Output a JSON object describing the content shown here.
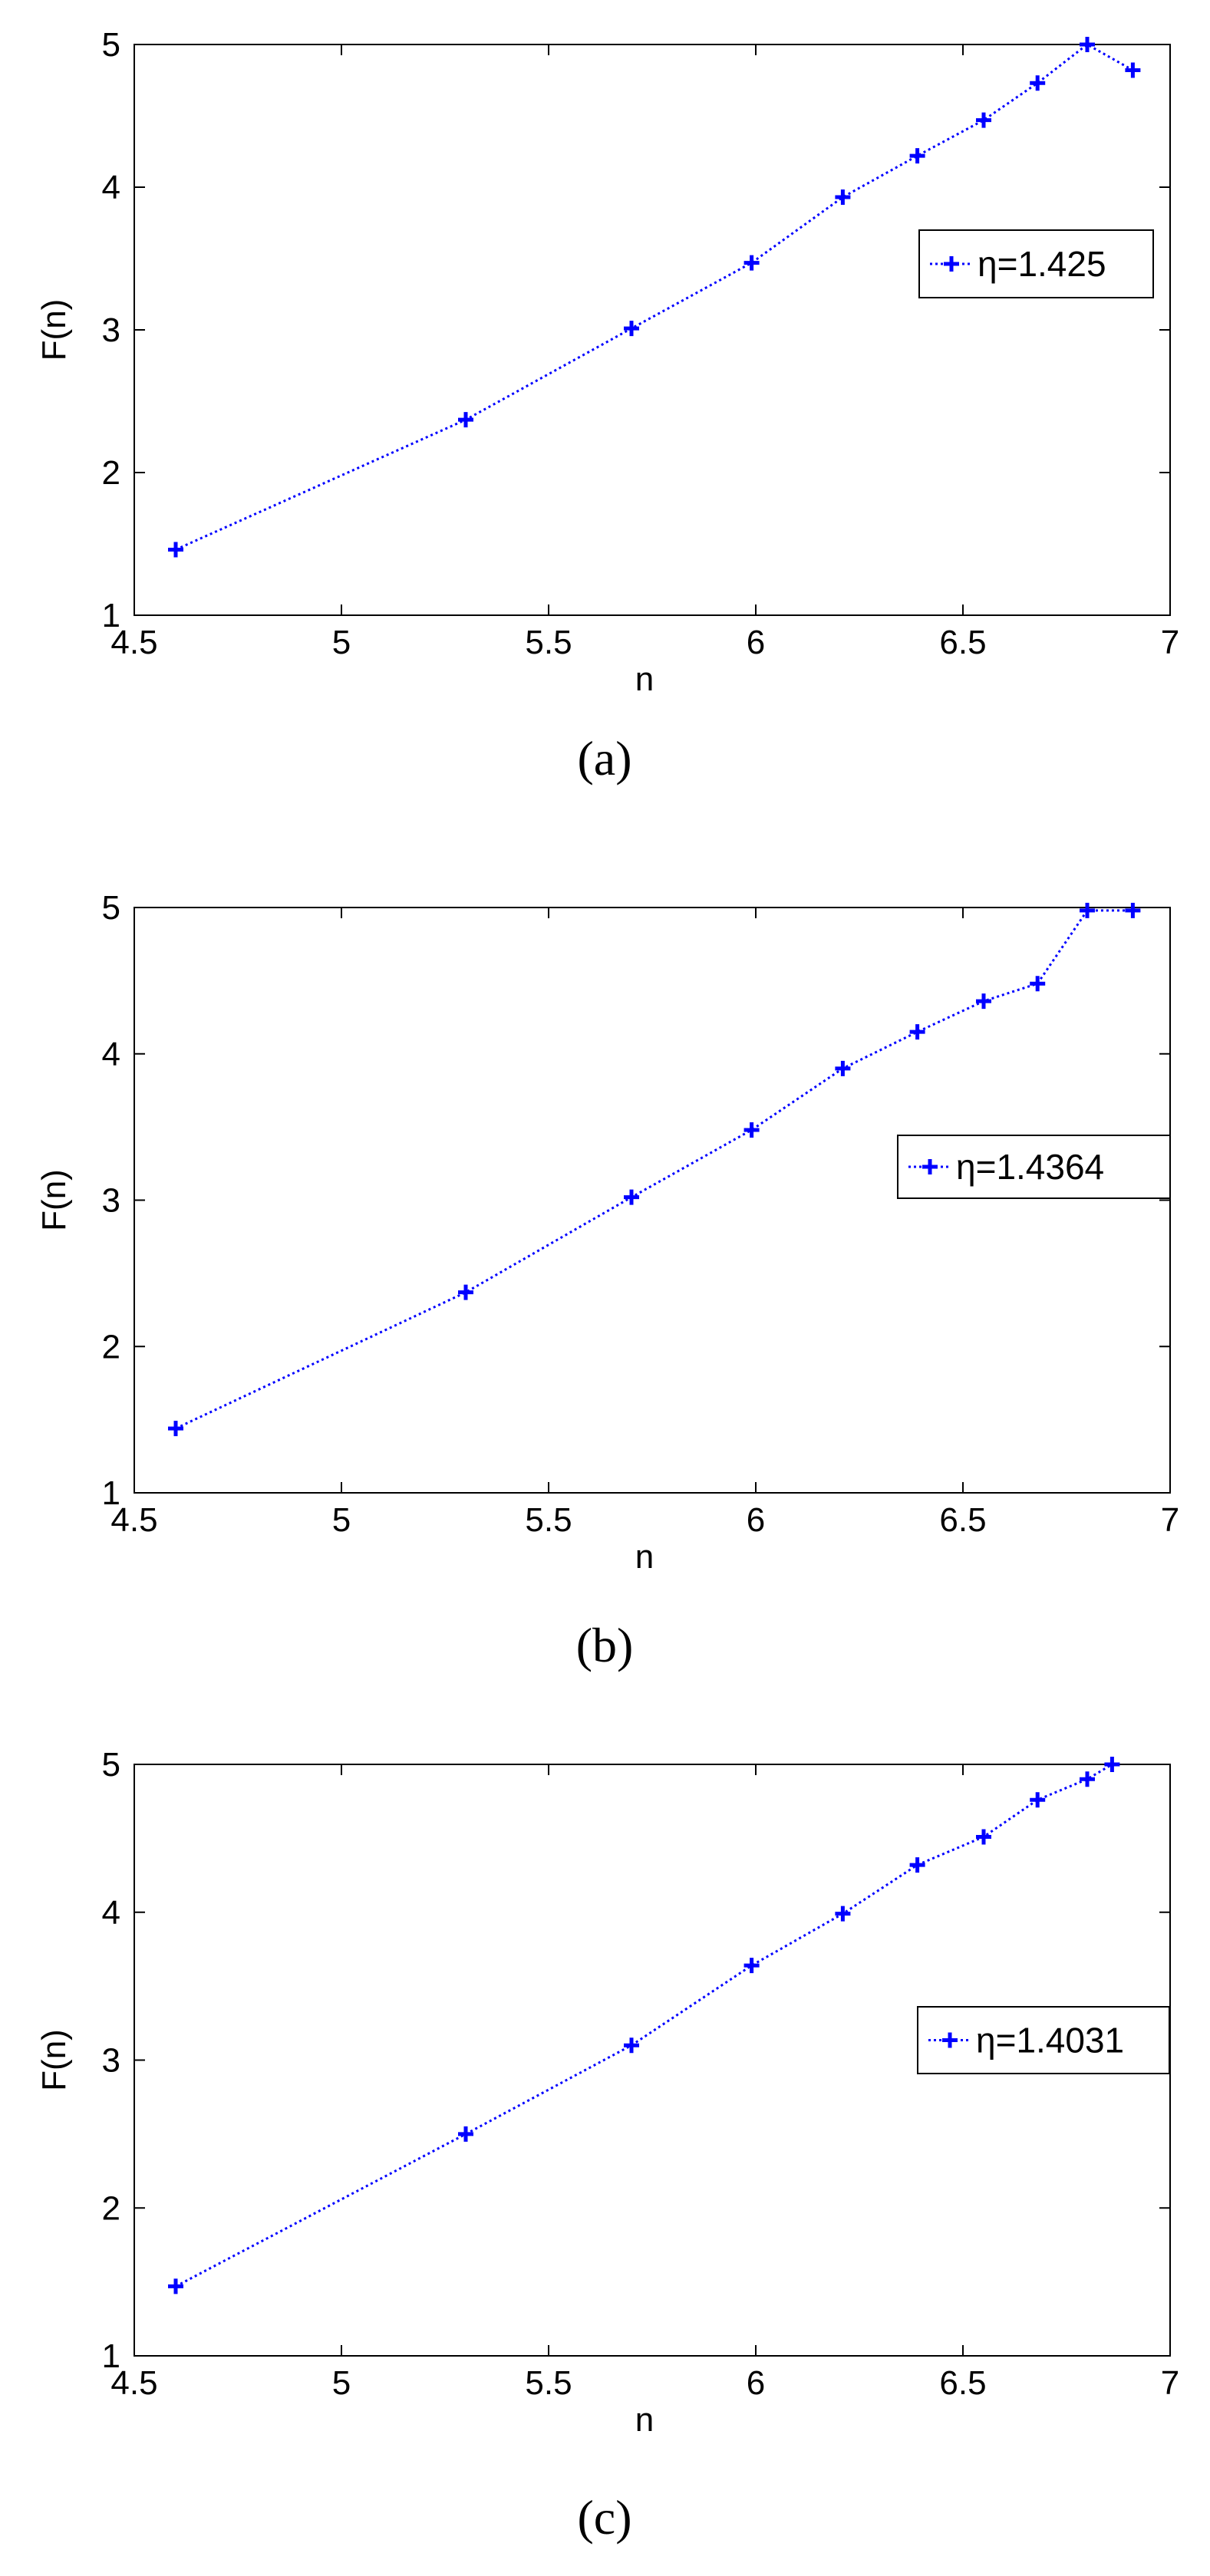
{
  "chart_data": [
    {
      "type": "line",
      "caption": "(a)",
      "xlabel": "n",
      "ylabel": "F(n)",
      "xlim": [
        4.5,
        7
      ],
      "ylim": [
        1,
        5
      ],
      "xticks": [
        "4.5",
        "5",
        "5.5",
        "6",
        "6.5",
        "7"
      ],
      "yticks": [
        "1",
        "2",
        "3",
        "4",
        "5"
      ],
      "grid": false,
      "legend_position": "right",
      "series": [
        {
          "name": "η=1.425",
          "color": "#0000ff",
          "line_style": "dotted",
          "marker": "plus",
          "x": [
            4.6,
            5.3,
            5.7,
            5.99,
            6.21,
            6.39,
            6.55,
            6.68,
            6.8,
            6.91
          ],
          "y": [
            1.46,
            2.37,
            3.01,
            3.47,
            3.93,
            4.22,
            4.47,
            4.73,
            5.0,
            4.82
          ]
        }
      ]
    },
    {
      "type": "line",
      "caption": "(b)",
      "xlabel": "n",
      "ylabel": "F(n)",
      "xlim": [
        4.5,
        7
      ],
      "ylim": [
        1,
        5
      ],
      "xticks": [
        "4.5",
        "5",
        "5.5",
        "6",
        "6.5",
        "7"
      ],
      "yticks": [
        "1",
        "2",
        "3",
        "4",
        "5"
      ],
      "grid": false,
      "legend_position": "right",
      "series": [
        {
          "name": "η=1.4364",
          "color": "#0000ff",
          "line_style": "dotted",
          "marker": "plus",
          "x": [
            4.6,
            5.3,
            5.7,
            5.99,
            6.21,
            6.39,
            6.55,
            6.68,
            6.8,
            6.91
          ],
          "y": [
            1.44,
            2.37,
            3.02,
            3.48,
            3.9,
            4.15,
            4.36,
            4.48,
            4.98,
            4.98
          ]
        }
      ]
    },
    {
      "type": "line",
      "caption": "(c)",
      "xlabel": "n",
      "ylabel": "F(n)",
      "xlim": [
        4.5,
        7
      ],
      "ylim": [
        1,
        5
      ],
      "xticks": [
        "4.5",
        "5",
        "5.5",
        "6",
        "6.5",
        "7"
      ],
      "yticks": [
        "1",
        "2",
        "3",
        "4",
        "5"
      ],
      "grid": false,
      "legend_position": "right",
      "series": [
        {
          "name": "η=1.4031",
          "color": "#0000ff",
          "line_style": "dotted",
          "marker": "plus",
          "x": [
            4.6,
            5.3,
            5.7,
            5.99,
            6.21,
            6.39,
            6.55,
            6.68,
            6.8,
            6.86
          ],
          "y": [
            1.47,
            2.5,
            3.1,
            3.64,
            3.99,
            4.32,
            4.51,
            4.76,
            4.9,
            5.0
          ]
        }
      ]
    }
  ]
}
